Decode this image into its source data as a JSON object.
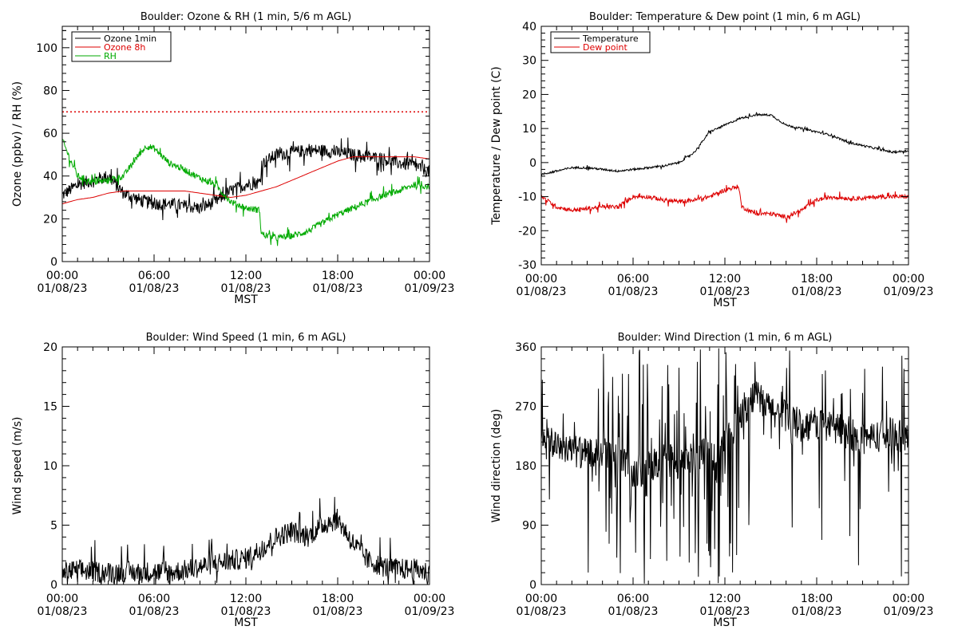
{
  "colors": {
    "black": "#000000",
    "red": "#dd0000",
    "green": "#00aa00"
  },
  "chart_data": [
    {
      "id": "ozone",
      "type": "line",
      "title": "Boulder: Ozone & RH (1 min, 5/6 m AGL)",
      "xlabel": "MST",
      "ylabel": "Ozone (ppbv) / RH (%)",
      "x_ticks": [
        {
          "time": "00:00",
          "date": "01/08/23"
        },
        {
          "time": "06:00",
          "date": "01/08/23"
        },
        {
          "time": "12:00",
          "date": "01/08/23"
        },
        {
          "time": "18:00",
          "date": "01/08/23"
        },
        {
          "time": "00:00",
          "date": "01/09/23"
        }
      ],
      "xlim": [
        0,
        24
      ],
      "ylim": [
        0,
        110
      ],
      "y_ticks": [
        0,
        20,
        40,
        60,
        80,
        100
      ],
      "grid": false,
      "legend": "top-left",
      "reference_lines": [
        {
          "y": 70,
          "color": "#dd0000",
          "style": "dotted"
        }
      ],
      "series": [
        {
          "name": "Ozone 1min",
          "color": "#000000",
          "noise": 3,
          "x": [
            0,
            1,
            2,
            3,
            4,
            5,
            6,
            7,
            8,
            9,
            10,
            11,
            12,
            12.9,
            13.1,
            14,
            15,
            16,
            17,
            18,
            19,
            20,
            21,
            22,
            23,
            24
          ],
          "y": [
            31,
            36,
            38,
            40,
            32,
            29,
            27,
            27,
            26,
            25,
            28,
            33,
            36,
            37,
            46,
            50,
            51,
            52,
            52,
            51,
            50,
            49,
            48,
            46,
            45,
            42
          ]
        },
        {
          "name": "Ozone 8h",
          "color": "#dd0000",
          "noise": 0,
          "x": [
            0,
            1,
            2,
            3,
            4,
            5,
            6,
            7,
            8,
            9,
            10,
            11,
            12,
            13,
            14,
            15,
            16,
            17,
            18,
            19,
            20,
            21,
            22,
            23,
            24
          ],
          "y": [
            27,
            29,
            30,
            32,
            33,
            33,
            33,
            33,
            33,
            32,
            31,
            30,
            31,
            33,
            35,
            38,
            41,
            44,
            47,
            49,
            49,
            49,
            49,
            49,
            48
          ]
        },
        {
          "name": "RH",
          "color": "#00aa00",
          "noise": 1.5,
          "x": [
            0,
            0.5,
            1,
            2,
            3,
            4,
            4.5,
            5,
            5.5,
            6,
            7,
            8,
            9,
            10,
            11,
            12,
            12.9,
            13,
            14,
            15,
            16,
            17,
            18,
            19,
            20,
            21,
            22,
            23,
            24
          ],
          "y": [
            57,
            48,
            40,
            37,
            38,
            40,
            45,
            50,
            54,
            53,
            46,
            43,
            39,
            36,
            28,
            25,
            24,
            13,
            11,
            12,
            14,
            18,
            22,
            25,
            28,
            31,
            33,
            36,
            35
          ]
        }
      ]
    },
    {
      "id": "temperature",
      "type": "line",
      "title": "Boulder: Temperature & Dew point (1 min, 6 m AGL)",
      "xlabel": "MST",
      "ylabel": "Temperature / Dew point (C)",
      "x_ticks": [
        {
          "time": "00:00",
          "date": "01/08/23"
        },
        {
          "time": "06:00",
          "date": "01/08/23"
        },
        {
          "time": "12:00",
          "date": "01/08/23"
        },
        {
          "time": "18:00",
          "date": "01/08/23"
        },
        {
          "time": "00:00",
          "date": "01/09/23"
        }
      ],
      "xlim": [
        0,
        24
      ],
      "ylim": [
        -30,
        40
      ],
      "y_ticks": [
        -30,
        -20,
        -10,
        0,
        10,
        20,
        30,
        40
      ],
      "grid": false,
      "legend": "top-left",
      "series": [
        {
          "name": "Temperature",
          "color": "#000000",
          "noise": 0.3,
          "x": [
            0,
            1,
            2,
            3,
            4,
            5,
            6,
            7,
            8,
            9,
            10,
            11,
            12,
            13,
            14,
            15,
            16,
            17,
            18,
            19,
            20,
            21,
            22,
            23,
            24
          ],
          "y": [
            -3.5,
            -2.5,
            -1.5,
            -1.5,
            -2,
            -2.5,
            -2,
            -1.5,
            -1,
            0,
            3,
            9,
            11,
            13,
            14,
            14,
            11,
            10,
            9,
            8,
            6,
            5,
            4,
            3,
            3.5
          ]
        },
        {
          "name": "Dew point",
          "color": "#dd0000",
          "noise": 0.6,
          "x": [
            0,
            1,
            2,
            3,
            4,
            5,
            6,
            7,
            8,
            9,
            10,
            11,
            12,
            12.9,
            13.1,
            14,
            15,
            16,
            17,
            18,
            19,
            20,
            21,
            22,
            23,
            24
          ],
          "y": [
            -10,
            -13,
            -14,
            -13.5,
            -13,
            -13,
            -10,
            -10,
            -11,
            -11.5,
            -11,
            -10,
            -8,
            -7,
            -13,
            -15,
            -15,
            -16,
            -14,
            -11,
            -10,
            -10.5,
            -10.5,
            -10,
            -10,
            -10
          ]
        }
      ]
    },
    {
      "id": "windspeed",
      "type": "line",
      "title": "Boulder: Wind Speed (1 min, 6 m AGL)",
      "xlabel": "MST",
      "ylabel": "Wind speed (m/s)",
      "x_ticks": [
        {
          "time": "00:00",
          "date": "01/08/23"
        },
        {
          "time": "06:00",
          "date": "01/08/23"
        },
        {
          "time": "12:00",
          "date": "01/08/23"
        },
        {
          "time": "18:00",
          "date": "01/08/23"
        },
        {
          "time": "00:00",
          "date": "01/09/23"
        }
      ],
      "xlim": [
        0,
        24
      ],
      "ylim": [
        0,
        20
      ],
      "y_ticks": [
        0,
        5,
        10,
        15,
        20
      ],
      "grid": false,
      "series": [
        {
          "name": "",
          "color": "#000000",
          "noise": 0.9,
          "floor": 0,
          "x": [
            0,
            1,
            2,
            3,
            4,
            5,
            6,
            7,
            8,
            9,
            10,
            11,
            12,
            13,
            14,
            15,
            16,
            17,
            18,
            19,
            20,
            21,
            22,
            23,
            24
          ],
          "y": [
            1,
            1.2,
            1.1,
            1,
            1.1,
            1,
            1.1,
            1,
            1.2,
            1.5,
            1.8,
            2,
            2.2,
            3,
            4,
            4.5,
            4,
            5,
            5.5,
            3.5,
            2,
            1.5,
            1.3,
            1.3,
            1
          ]
        }
      ]
    },
    {
      "id": "winddir",
      "type": "line",
      "title": "Boulder: Wind Direction (1 min, 6 m AGL)",
      "xlabel": "MST",
      "ylabel": "Wind direction (deg)",
      "x_ticks": [
        {
          "time": "00:00",
          "date": "01/08/23"
        },
        {
          "time": "06:00",
          "date": "01/08/23"
        },
        {
          "time": "12:00",
          "date": "01/08/23"
        },
        {
          "time": "18:00",
          "date": "01/08/23"
        },
        {
          "time": "00:00",
          "date": "01/09/23"
        }
      ],
      "xlim": [
        0,
        24
      ],
      "ylim": [
        0,
        360
      ],
      "y_ticks": [
        0,
        90,
        180,
        270,
        360
      ],
      "grid": false,
      "series": [
        {
          "name": "",
          "color": "#000000",
          "noise": 25,
          "floor": 0,
          "ceil": 360,
          "x": [
            0,
            1,
            2,
            3,
            4,
            5,
            6,
            7,
            8,
            9,
            10,
            11,
            12,
            13,
            14,
            15,
            16,
            17,
            18,
            19,
            20,
            21,
            22,
            23,
            24
          ],
          "y": [
            210,
            215,
            205,
            195,
            200,
            190,
            170,
            180,
            190,
            185,
            190,
            200,
            210,
            260,
            285,
            265,
            255,
            240,
            245,
            240,
            230,
            220,
            225,
            230,
            220
          ]
        }
      ]
    }
  ]
}
